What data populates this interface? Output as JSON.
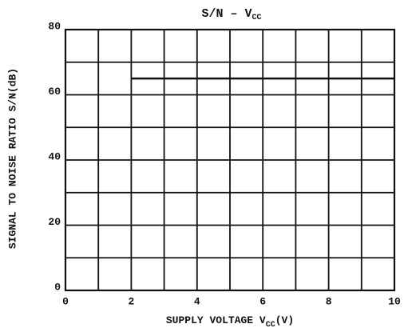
{
  "chart_data": {
    "type": "line",
    "title": "S/N  –  V",
    "title_sub": "CC",
    "xlabel": "SUPPLY VOLTAGE  V",
    "xlabel_sub": "CC",
    "xlabel_unit": "(V)",
    "ylabel": "SIGNAL TO NOISE RATIO   S/N(dB)",
    "x": [
      2,
      10
    ],
    "series": [
      {
        "color": "#111111",
        "values": [
          65,
          65
        ]
      }
    ],
    "xlim": [
      0,
      10
    ],
    "xticks": [
      0,
      2,
      4,
      6,
      8,
      10
    ],
    "xminorticks": [
      1,
      3,
      5,
      7,
      9
    ],
    "ylim": [
      0,
      80
    ],
    "yticks": [
      0,
      20,
      40,
      60,
      80
    ],
    "yminorticks": [
      10,
      30,
      50,
      70
    ],
    "grid": true
  }
}
